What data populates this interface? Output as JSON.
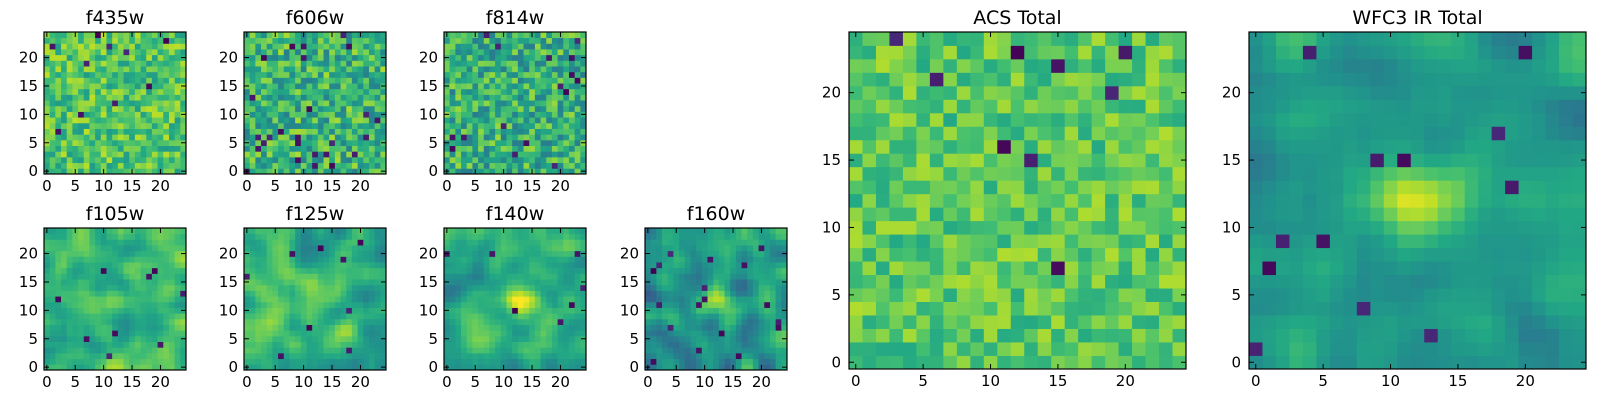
{
  "colormap": "viridis",
  "colors": {
    "low": "#440154",
    "mid": "#21918c",
    "high": "#fde725",
    "frame": "#000000"
  },
  "chart_data": [
    {
      "type": "heatmap",
      "id": "f435w",
      "title": "f435w",
      "grid": [
        25,
        25
      ],
      "xlim": [
        0,
        24
      ],
      "ylim": [
        0,
        24
      ],
      "xticks": [
        0,
        5,
        10,
        15,
        20
      ],
      "yticks": [
        0,
        5,
        10,
        15,
        20
      ],
      "pattern": "noise",
      "seed": 11,
      "mean": 0.72,
      "spread": 0.18,
      "dark_fraction": 0.02
    },
    {
      "type": "heatmap",
      "id": "f606w",
      "title": "f606w",
      "grid": [
        25,
        25
      ],
      "xlim": [
        0,
        24
      ],
      "ylim": [
        0,
        24
      ],
      "xticks": [
        0,
        5,
        10,
        15,
        20
      ],
      "yticks": [
        0,
        5,
        10,
        15,
        20
      ],
      "pattern": "noise",
      "seed": 23,
      "mean": 0.65,
      "spread": 0.22,
      "dark_fraction": 0.035
    },
    {
      "type": "heatmap",
      "id": "f814w",
      "title": "f814w",
      "grid": [
        25,
        25
      ],
      "xlim": [
        0,
        24
      ],
      "ylim": [
        0,
        24
      ],
      "xticks": [
        0,
        5,
        10,
        15,
        20
      ],
      "yticks": [
        0,
        5,
        10,
        15,
        20
      ],
      "pattern": "noise",
      "seed": 37,
      "mean": 0.63,
      "spread": 0.22,
      "dark_fraction": 0.03
    },
    {
      "type": "heatmap",
      "id": "f105w",
      "title": "f105w",
      "grid": [
        25,
        25
      ],
      "xlim": [
        0,
        24
      ],
      "ylim": [
        0,
        24
      ],
      "xticks": [
        0,
        5,
        10,
        15,
        20
      ],
      "yticks": [
        0,
        5,
        10,
        15,
        20
      ],
      "pattern": "smooth",
      "seed": 41,
      "mean": 0.68,
      "spread": 0.2,
      "dark_fraction": 0.01,
      "center": [
        12,
        12
      ],
      "center_peak": 0.08
    },
    {
      "type": "heatmap",
      "id": "f125w",
      "title": "f125w",
      "grid": [
        25,
        25
      ],
      "xlim": [
        0,
        24
      ],
      "ylim": [
        0,
        24
      ],
      "xticks": [
        0,
        5,
        10,
        15,
        20
      ],
      "yticks": [
        0,
        5,
        10,
        15,
        20
      ],
      "pattern": "smooth",
      "seed": 53,
      "mean": 0.64,
      "spread": 0.22,
      "dark_fraction": 0.015,
      "center": [
        12,
        12
      ],
      "center_peak": 0.12
    },
    {
      "type": "heatmap",
      "id": "f140w",
      "title": "f140w",
      "grid": [
        25,
        25
      ],
      "xlim": [
        0,
        24
      ],
      "ylim": [
        0,
        24
      ],
      "xticks": [
        0,
        5,
        10,
        15,
        20
      ],
      "yticks": [
        0,
        5,
        10,
        15,
        20
      ],
      "pattern": "smooth",
      "seed": 67,
      "mean": 0.6,
      "spread": 0.2,
      "dark_fraction": 0.015,
      "center": [
        13,
        12
      ],
      "center_peak": 0.3
    },
    {
      "type": "heatmap",
      "id": "f160w",
      "title": "f160w",
      "grid": [
        25,
        25
      ],
      "xlim": [
        0,
        24
      ],
      "ylim": [
        0,
        24
      ],
      "xticks": [
        0,
        5,
        10,
        15,
        20
      ],
      "yticks": [
        0,
        5,
        10,
        15,
        20
      ],
      "pattern": "smooth",
      "seed": 79,
      "mean": 0.52,
      "spread": 0.24,
      "dark_fraction": 0.04,
      "center": [
        12,
        12
      ],
      "center_peak": 0.35
    },
    {
      "type": "heatmap",
      "id": "acs-total",
      "title": "ACS Total",
      "grid": [
        25,
        25
      ],
      "xlim": [
        0,
        24
      ],
      "ylim": [
        0,
        24
      ],
      "xticks": [
        0,
        5,
        10,
        15,
        20
      ],
      "yticks": [
        0,
        5,
        10,
        15,
        20
      ],
      "pattern": "noise",
      "seed": 97,
      "mean": 0.74,
      "spread": 0.14,
      "dark_fraction": 0.015
    },
    {
      "type": "heatmap",
      "id": "wfc3-ir-total",
      "title": "WFC3 IR Total",
      "grid": [
        25,
        25
      ],
      "xlim": [
        0,
        24
      ],
      "ylim": [
        0,
        24
      ],
      "xticks": [
        0,
        5,
        10,
        15,
        20
      ],
      "yticks": [
        0,
        5,
        10,
        15,
        20
      ],
      "pattern": "smooth",
      "seed": 113,
      "mean": 0.55,
      "spread": 0.16,
      "dark_fraction": 0.025,
      "center": [
        12,
        12
      ],
      "center_peak": 0.38
    }
  ]
}
